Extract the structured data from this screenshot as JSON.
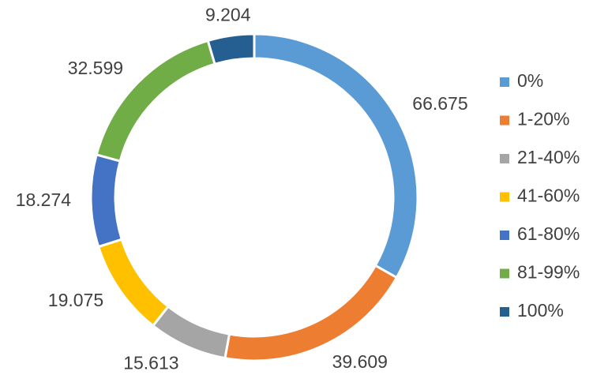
{
  "chart_data": {
    "type": "pie",
    "variant": "donut",
    "title": "",
    "legend_position": "right",
    "categories": [
      "0%",
      "1-20%",
      "21-40%",
      "41-60%",
      "61-80%",
      "81-99%",
      "100%"
    ],
    "values": [
      66.675,
      39.609,
      15.613,
      19.075,
      18.274,
      32.599,
      9.204
    ],
    "value_labels": [
      "66.675",
      "39.609",
      "15.613",
      "19.075",
      "18.274",
      "32.599",
      "9.204"
    ],
    "colors": [
      "#5B9BD5",
      "#ED7D31",
      "#A5A5A5",
      "#FFC000",
      "#4472C4",
      "#70AD47",
      "#255E91"
    ]
  }
}
